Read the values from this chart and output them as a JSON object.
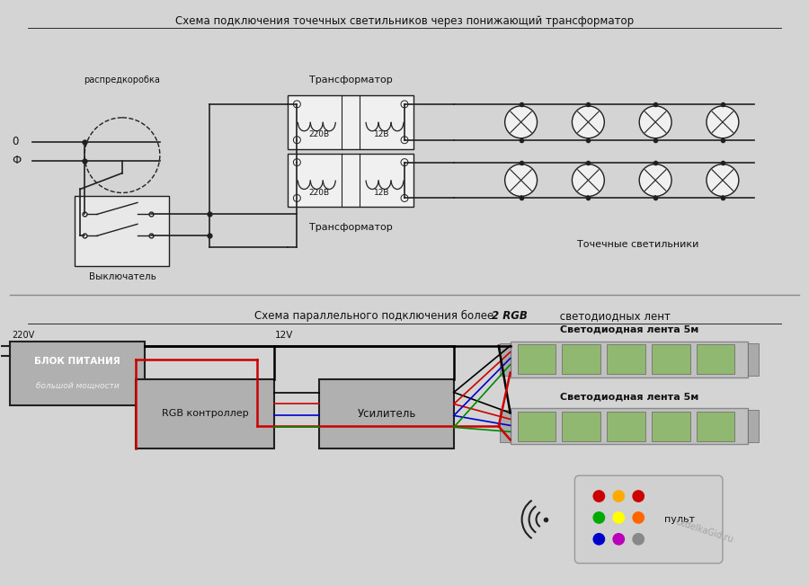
{
  "title1": "Схема подключения точечных светильников через понижающий трансформатор",
  "title2_part1": "Схема параллельного подключения более ",
  "title2_bold": "2 RGB",
  "title2_part2": " светодиодных лент",
  "bg_color": "#d4d4d4",
  "panel_color": "#b0b0b0",
  "line_color": "#202020",
  "red_color": "#cc0000",
  "blue_color": "#0000cc",
  "green_color": "#008800",
  "white_color": "#f0f0f0",
  "text_color": "#111111",
  "watermark": "OtdelkaGid.ru",
  "label_transformer1": "Трансформатор",
  "label_transformer2": "Трансформатор",
  "label_220v1": "220В",
  "label_12v1": "12В",
  "label_220v2": "220В",
  "label_12v2": "12В",
  "label_raspred": "распредкоробка",
  "label_vykluchatel": "Выключатель",
  "label_lights": "Точечные светильники",
  "label_220v_pwr": "220V",
  "label_12v_pwr": "12V",
  "label_blok": "БЛОК ПИТАНИЯ",
  "label_blok2": "большой мощности",
  "label_rgb": "RGB контроллер",
  "label_usil": "Усилитель",
  "label_tape1": "Светодиодная лента 5м",
  "label_tape2": "Светодиодная лента 5м",
  "label_pult": "пульт",
  "label_zero": "0",
  "label_phase": "Ф"
}
